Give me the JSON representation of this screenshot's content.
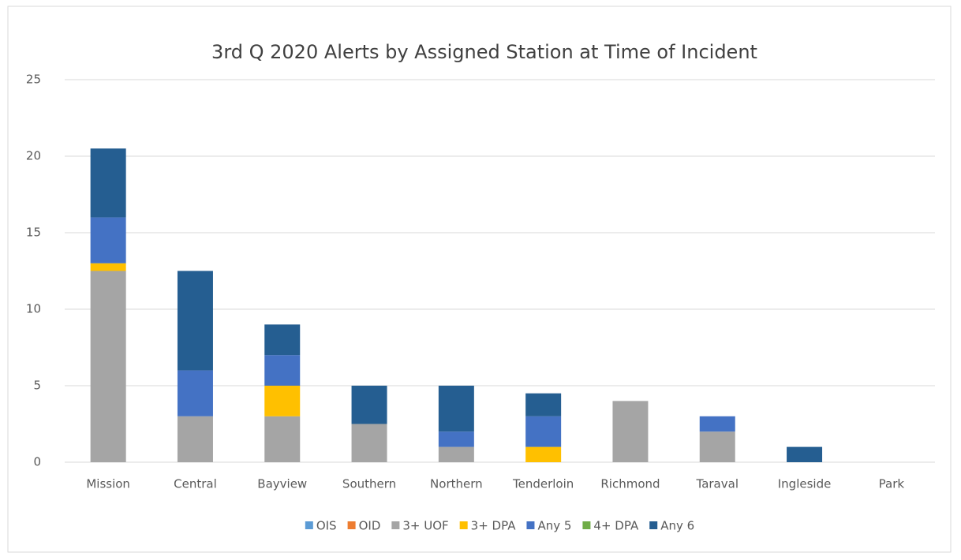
{
  "chart_data": {
    "type": "bar",
    "stacked": true,
    "title": "3rd Q 2020 Alerts by Assigned Station at Time of Incident",
    "categories": [
      "Mission",
      "Central",
      "Bayview",
      "Southern",
      "Northern",
      "Tenderloin",
      "Richmond",
      "Taraval",
      "Ingleside",
      "Park"
    ],
    "series": [
      {
        "name": "OIS",
        "color": "#5b9bd5",
        "values": [
          0,
          0,
          0,
          0,
          0,
          0,
          0,
          0,
          0,
          0
        ]
      },
      {
        "name": "OID",
        "color": "#ed7d31",
        "values": [
          0,
          0,
          0,
          0,
          0,
          0,
          0,
          0,
          0,
          0
        ]
      },
      {
        "name": "3+ UOF",
        "color": "#a5a5a5",
        "values": [
          12.5,
          3,
          3,
          2.5,
          1,
          0,
          4,
          2,
          0,
          0
        ]
      },
      {
        "name": "3+ DPA",
        "color": "#ffc000",
        "values": [
          0.5,
          0,
          2,
          0,
          0,
          1,
          0,
          0,
          0,
          0
        ]
      },
      {
        "name": "Any 5",
        "color": "#4472c4",
        "values": [
          3,
          3,
          2,
          0,
          1,
          2,
          0,
          1,
          0,
          0
        ]
      },
      {
        "name": "4+ DPA",
        "color": "#70ad47",
        "values": [
          0,
          0,
          0,
          0,
          0,
          0,
          0,
          0,
          0,
          0
        ]
      },
      {
        "name": "Any 6",
        "color": "#255e91",
        "values": [
          4.5,
          6.5,
          2,
          2.5,
          3,
          1.5,
          0,
          0,
          1,
          0
        ]
      }
    ],
    "ylim": [
      0,
      25
    ],
    "yticks": [
      0,
      5,
      10,
      15,
      20,
      25
    ],
    "grid": true,
    "legend": "bottom"
  }
}
